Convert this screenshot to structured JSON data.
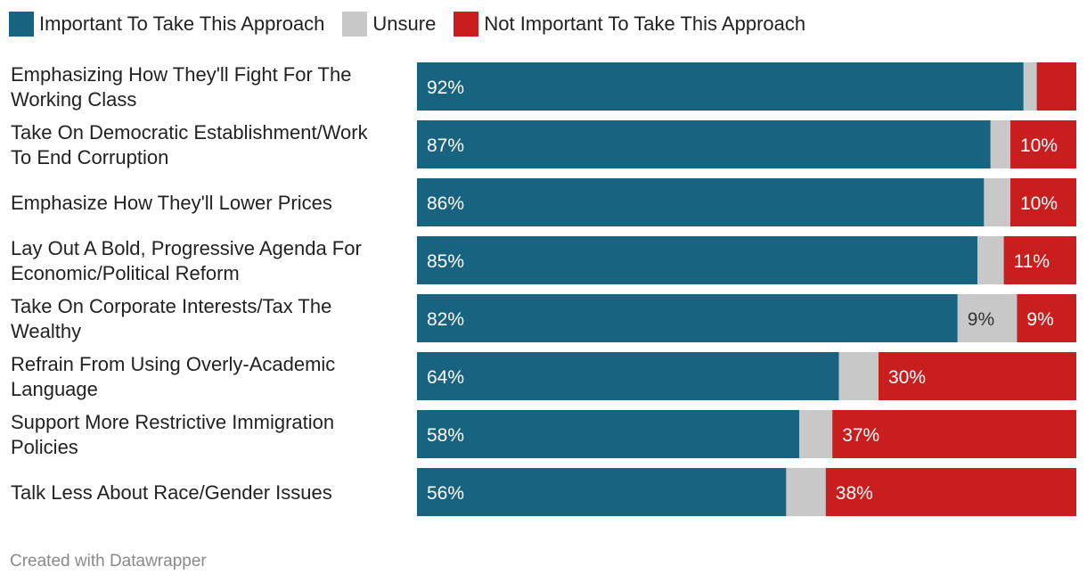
{
  "colors": {
    "important": "#18637f",
    "unsure": "#c8c8c8",
    "not_important": "#c81e1e",
    "label_light": "#ffffff",
    "label_dark": "#333333"
  },
  "legend": [
    {
      "key": "important",
      "label": "Important To Take This Approach"
    },
    {
      "key": "unsure",
      "label": "Unsure"
    },
    {
      "key": "not_important",
      "label": "Not Important To Take This Approach"
    }
  ],
  "chart_data": {
    "type": "bar",
    "orientation": "horizontal",
    "stacked": true,
    "xlim": [
      0,
      100
    ],
    "categories": [
      [
        "Emphasizing How They'll Fight For The",
        "Working Class"
      ],
      [
        "Take On Democratic Establishment/Work",
        "To End Corruption"
      ],
      [
        "Emphasize How They'll Lower Prices"
      ],
      [
        "Lay Out A Bold, Progressive Agenda For",
        "Economic/Political Reform"
      ],
      [
        "Take On Corporate Interests/Tax The",
        "Wealthy"
      ],
      [
        "Refrain From Using Overly-Academic",
        "Language"
      ],
      [
        "Support More Restrictive Immigration",
        "Policies"
      ],
      [
        "Talk Less About Race/Gender Issues"
      ]
    ],
    "series": [
      {
        "name": "Important To Take This Approach",
        "key": "important",
        "values": [
          92,
          87,
          86,
          85,
          82,
          64,
          58,
          56
        ],
        "labels": [
          "92%",
          "87%",
          "86%",
          "85%",
          "82%",
          "64%",
          "58%",
          "56%"
        ]
      },
      {
        "name": "Unsure",
        "key": "unsure",
        "values": [
          2,
          3,
          4,
          4,
          9,
          6,
          5,
          6
        ],
        "labels": [
          "",
          "",
          "",
          "",
          "9%",
          "",
          "",
          ""
        ]
      },
      {
        "name": "Not Important To Take This Approach",
        "key": "not_important",
        "values": [
          6,
          10,
          10,
          11,
          9,
          30,
          37,
          38
        ],
        "labels": [
          "",
          "10%",
          "10%",
          "11%",
          "9%",
          "30%",
          "37%",
          "38%"
        ]
      }
    ]
  },
  "footer": {
    "credit": "Created with Datawrapper"
  }
}
